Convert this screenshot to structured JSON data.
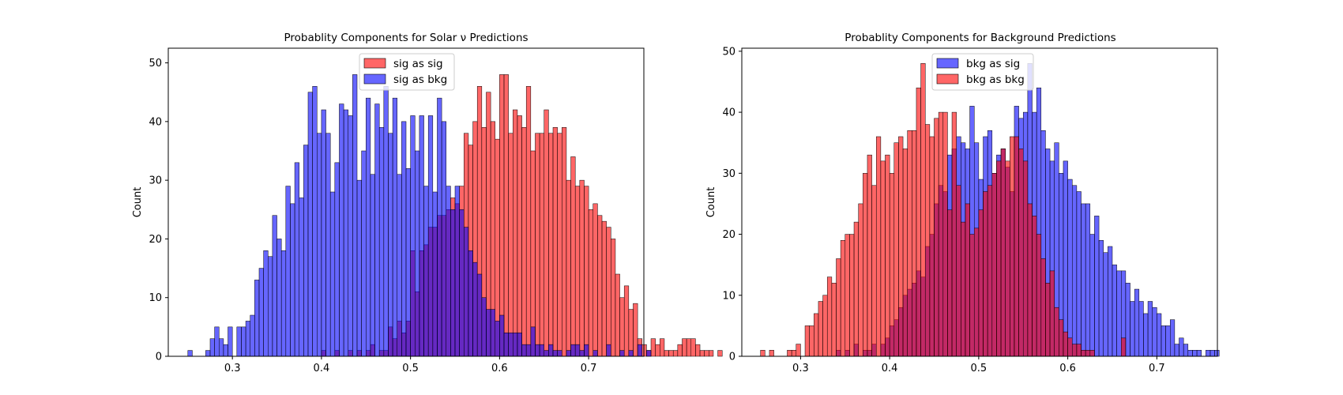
{
  "chart_data": [
    {
      "type": "histogram",
      "title": "Probablity Components for Solar ν Predictions",
      "xlabel": "",
      "ylabel": "Count",
      "xlim": [
        0.228,
        0.762
      ],
      "ylim": [
        0,
        52.5
      ],
      "xticks": [
        0.3,
        0.4,
        0.5,
        0.6,
        0.7
      ],
      "xtick_labels": [
        "0.3",
        "0.4",
        "0.5",
        "0.6",
        "0.7"
      ],
      "yticks": [
        0,
        10,
        20,
        30,
        40,
        50
      ],
      "ytick_labels": [
        "0",
        "10",
        "20",
        "30",
        "40",
        "50"
      ],
      "bin_width": 0.005,
      "legend_position": "upper center",
      "series": [
        {
          "name": "sig as sig",
          "color": "#ff0000",
          "x_start": 0.4,
          "counts": [
            1,
            0,
            0,
            1,
            0,
            0,
            1,
            0,
            1,
            0,
            1,
            2,
            0,
            1,
            1,
            5,
            3,
            6,
            4,
            6,
            18,
            11,
            18,
            19,
            22,
            22,
            24,
            24,
            25,
            27,
            26,
            29,
            38,
            36,
            40,
            46,
            39,
            45,
            40,
            37,
            48,
            48,
            38,
            42,
            41,
            39,
            46,
            35,
            38,
            38,
            42,
            38,
            39,
            38,
            39,
            30,
            34,
            29,
            30,
            29,
            25,
            26,
            24,
            23,
            22,
            20,
            14,
            10,
            12,
            8,
            9,
            3,
            2,
            1,
            3,
            2,
            3,
            1,
            1,
            1,
            2,
            3,
            3,
            3,
            2,
            1,
            1,
            1,
            0,
            1
          ]
        },
        {
          "name": "sig as bkg",
          "color": "#0000ff",
          "x_start": 0.25,
          "counts": [
            1,
            0,
            0,
            0,
            1,
            3,
            5,
            3,
            2,
            5,
            0,
            5,
            5,
            6,
            7,
            13,
            15,
            18,
            17,
            24,
            20,
            18,
            29,
            26,
            33,
            27,
            36,
            45,
            46,
            38,
            42,
            38,
            28,
            33,
            43,
            42,
            41,
            48,
            30,
            35,
            44,
            31,
            43,
            39,
            46,
            38,
            44,
            31,
            40,
            32,
            41,
            35,
            41,
            29,
            41,
            28,
            44,
            40,
            29,
            25,
            29,
            25,
            22,
            18,
            16,
            14,
            10,
            8,
            8,
            6,
            7,
            4,
            4,
            4,
            4,
            2,
            2,
            5,
            2,
            2,
            1,
            2,
            1,
            1,
            0,
            1,
            2,
            2,
            1,
            2,
            0,
            1,
            0,
            0,
            2,
            0,
            0,
            1,
            0,
            1,
            0,
            2,
            0,
            1
          ]
        }
      ]
    },
    {
      "type": "histogram",
      "title": "Probablity Components for Background Predictions",
      "xlabel": "",
      "ylabel": "Count",
      "xlim": [
        0.234,
        0.768
      ],
      "ylim": [
        0,
        50.5
      ],
      "xticks": [
        0.3,
        0.4,
        0.5,
        0.6,
        0.7
      ],
      "xtick_labels": [
        "0.3",
        "0.4",
        "0.5",
        "0.6",
        "0.7"
      ],
      "yticks": [
        0,
        10,
        20,
        30,
        40,
        50
      ],
      "ytick_labels": [
        "0",
        "10",
        "20",
        "30",
        "40",
        "50"
      ],
      "bin_width": 0.005,
      "legend_position": "upper center",
      "series": [
        {
          "name": "bkg as sig",
          "color": "#0000ff",
          "x_start": 0.34,
          "counts": [
            1,
            0,
            1,
            0,
            2,
            0,
            1,
            1,
            2,
            0,
            2,
            3,
            5,
            6,
            8,
            10,
            11,
            12,
            14,
            13,
            18,
            20,
            25,
            28,
            27,
            33,
            34,
            36,
            35,
            34,
            41,
            35,
            29,
            36,
            37,
            30,
            33,
            34,
            31,
            27,
            41,
            39,
            40,
            48,
            40,
            44,
            37,
            34,
            32,
            35,
            30,
            32,
            29,
            28,
            27,
            25,
            25,
            20,
            23,
            19,
            17,
            18,
            15,
            14,
            14,
            12,
            9,
            11,
            9,
            7,
            9,
            8,
            7,
            5,
            5,
            6,
            2,
            3,
            2,
            1,
            1,
            1,
            0,
            1,
            1,
            1
          ]
        },
        {
          "name": "bkg as bkg",
          "color": "#ff0000",
          "x_start": 0.255,
          "counts": [
            1,
            0,
            1,
            0,
            0,
            0,
            1,
            1,
            2,
            0,
            5,
            5,
            7,
            9,
            10,
            13,
            12,
            16,
            19,
            20,
            20,
            22,
            25,
            30,
            33,
            28,
            36,
            32,
            33,
            30,
            35,
            36,
            34,
            37,
            37,
            44,
            48,
            38,
            36,
            39,
            40,
            40,
            24,
            40,
            28,
            22,
            25,
            20,
            21,
            24,
            27,
            28,
            30,
            32,
            34,
            32,
            36,
            36,
            34,
            32,
            25,
            23,
            20,
            16,
            12,
            14,
            8,
            6,
            4,
            3,
            2,
            2,
            1,
            1,
            1,
            0,
            0,
            0,
            0,
            0,
            0,
            3
          ]
        }
      ]
    }
  ]
}
